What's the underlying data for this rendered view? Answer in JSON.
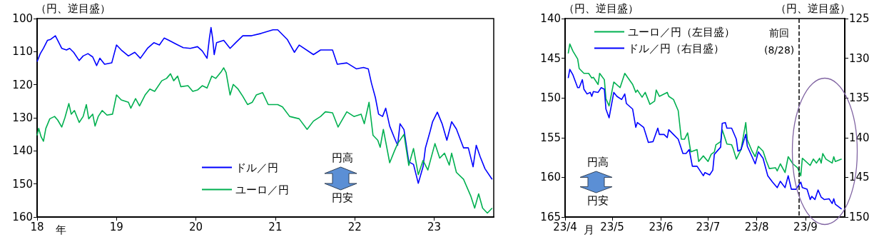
{
  "chart_data": [
    {
      "type": "line",
      "ylabel": "（円、逆目盛）",
      "xlabel": "年",
      "annotations": [
        "円高",
        "円安"
      ],
      "legend": "bottom",
      "marker": "none",
      "xlim": [
        2018,
        2023.75
      ],
      "xticks": [
        {
          "value": 2018,
          "label": "18"
        },
        {
          "value": 2019,
          "label": "19"
        },
        {
          "value": 2020,
          "label": "20"
        },
        {
          "value": 2021,
          "label": "21"
        },
        {
          "value": 2022,
          "label": "22"
        },
        {
          "value": 2023,
          "label": "23"
        }
      ],
      "ylim": [
        160,
        100
      ],
      "yticks": [
        100,
        110,
        120,
        130,
        140,
        150,
        160
      ],
      "series": [
        {
          "name": "ドル／円",
          "color": "#0000ff",
          "x": [
            2018.0,
            2018.04,
            2018.08,
            2018.13,
            2018.17,
            2018.23,
            2018.26,
            2018.31,
            2018.37,
            2018.41,
            2018.46,
            2018.53,
            2018.58,
            2018.64,
            2018.7,
            2018.75,
            2018.79,
            2018.85,
            2018.94,
            2019.0,
            2019.06,
            2019.15,
            2019.23,
            2019.3,
            2019.39,
            2019.47,
            2019.54,
            2019.6,
            2019.66,
            2019.75,
            2019.84,
            2019.93,
            2020.02,
            2020.08,
            2020.14,
            2020.17,
            2020.19,
            2020.21,
            2020.23,
            2020.26,
            2020.35,
            2020.43,
            2020.5,
            2020.59,
            2020.7,
            2020.82,
            2020.97,
            2021.03,
            2021.15,
            2021.24,
            2021.3,
            2021.48,
            2021.57,
            2021.72,
            2021.78,
            2021.9,
            2022.02,
            2022.11,
            2022.17,
            2022.21,
            2022.26,
            2022.3,
            2022.35,
            2022.39,
            2022.44,
            2022.5,
            2022.54,
            2022.57,
            2022.62,
            2022.68,
            2022.74,
            2022.8,
            2022.86,
            2022.89,
            2022.95,
            2022.98,
            2023.04,
            2023.1,
            2023.16,
            2023.22,
            2023.28,
            2023.37,
            2023.43,
            2023.49,
            2023.53,
            2023.58,
            2023.64,
            2023.73
          ],
          "values": [
            113,
            110.6,
            109,
            106.6,
            106.3,
            105.2,
            106.6,
            109,
            109.5,
            109,
            110.2,
            112.7,
            111.3,
            110.6,
            111.6,
            114.2,
            112,
            113.8,
            113.4,
            108,
            109.5,
            111.3,
            110.2,
            112,
            109,
            107.3,
            108,
            105.9,
            106.6,
            107.7,
            108.8,
            109,
            108.5,
            109.8,
            112,
            105.9,
            102.7,
            105.9,
            110.9,
            107.3,
            106.6,
            109,
            107.3,
            105.2,
            105.2,
            104.5,
            103.4,
            103.4,
            106.3,
            110.2,
            108,
            110.9,
            109.5,
            109.5,
            113.8,
            113.4,
            115.2,
            114.8,
            115.2,
            119.5,
            123.9,
            128.9,
            129.6,
            127.1,
            132.5,
            136.1,
            138.3,
            131.8,
            133.6,
            143.3,
            144.1,
            149.8,
            144.8,
            139.1,
            134,
            131.2,
            128.3,
            131.8,
            136.8,
            131.2,
            133.4,
            139.1,
            139.1,
            144.8,
            138.3,
            141.8,
            145.4,
            148.6
          ]
        },
        {
          "name": "ユーロ／円",
          "color": "#00b050",
          "x": [
            2018.0,
            2018.02,
            2018.05,
            2018.08,
            2018.11,
            2018.16,
            2018.22,
            2018.26,
            2018.31,
            2018.35,
            2018.4,
            2018.43,
            2018.47,
            2018.53,
            2018.58,
            2018.62,
            2018.65,
            2018.7,
            2018.73,
            2018.77,
            2018.82,
            2018.88,
            2018.95,
            2019.0,
            2019.06,
            2019.15,
            2019.18,
            2019.24,
            2019.29,
            2019.36,
            2019.42,
            2019.48,
            2019.57,
            2019.63,
            2019.68,
            2019.72,
            2019.77,
            2019.81,
            2019.9,
            2019.96,
            2020.02,
            2020.08,
            2020.14,
            2020.2,
            2020.25,
            2020.32,
            2020.35,
            2020.38,
            2020.43,
            2020.47,
            2020.53,
            2020.59,
            2020.65,
            2020.71,
            2020.76,
            2020.84,
            2020.91,
            2021.03,
            2021.09,
            2021.18,
            2021.3,
            2021.4,
            2021.48,
            2021.57,
            2021.63,
            2021.72,
            2021.79,
            2021.9,
            2021.99,
            2022.08,
            2022.12,
            2022.18,
            2022.23,
            2022.29,
            2022.32,
            2022.36,
            2022.44,
            2022.5,
            2022.54,
            2022.62,
            2022.68,
            2022.74,
            2022.8,
            2022.86,
            2022.92,
            2023.01,
            2023.07,
            2023.13,
            2023.19,
            2023.22,
            2023.28,
            2023.37,
            2023.46,
            2023.51,
            2023.56,
            2023.61,
            2023.67,
            2023.73
          ],
          "values": [
            135.3,
            133.2,
            135.7,
            137.1,
            133.2,
            130.3,
            129.6,
            130.7,
            132.8,
            130,
            125.7,
            128.9,
            127.8,
            131.4,
            129.6,
            126,
            130.3,
            128.9,
            132.5,
            129.6,
            127.8,
            129.2,
            128.9,
            123.1,
            124.6,
            125.3,
            127.1,
            124.2,
            126.4,
            123.1,
            121.3,
            122,
            118.8,
            118.1,
            116.7,
            118.8,
            117.4,
            120.6,
            120.3,
            122,
            121.6,
            120.3,
            121,
            117.4,
            118.1,
            116,
            114.9,
            116.3,
            123.1,
            119.9,
            121.3,
            123.5,
            126,
            125.3,
            123.1,
            122.4,
            126,
            126,
            126.7,
            129.6,
            130.3,
            133.5,
            131,
            129.6,
            128.2,
            128.5,
            132.8,
            128.2,
            129.6,
            128.9,
            131.8,
            125.3,
            135.3,
            136.8,
            138.9,
            133.5,
            143.6,
            140,
            137.8,
            135,
            144.4,
            139.3,
            147.2,
            142.9,
            145.8,
            137.8,
            142.2,
            140.7,
            144.3,
            140.7,
            146.5,
            148.6,
            153.6,
            157.3,
            153,
            157.3,
            158.8,
            157.3
          ]
        }
      ]
    },
    {
      "type": "line",
      "ylabel": "（円、逆目盛）",
      "y2label": "（円、逆目盛）",
      "xlabel": "月",
      "annotations": [
        "円高",
        "円安"
      ],
      "legend": "top left",
      "marker": "none",
      "xlim": [
        "--04-01",
        "--09-26"
      ],
      "xticks": [
        {
          "value": "--04-01",
          "label": "23/4"
        },
        {
          "value": "--05-01",
          "label": "23/5"
        },
        {
          "value": "--06-01",
          "label": "23/6"
        },
        {
          "value": "--07-01",
          "label": "23/7"
        },
        {
          "value": "--08-01",
          "label": "23/8"
        },
        {
          "value": "--09-01",
          "label": "23/9"
        }
      ],
      "ylim": [
        165,
        140
      ],
      "yticks": [
        140,
        145,
        150,
        155,
        160,
        165
      ],
      "y2lim": [
        150,
        125
      ],
      "y2ticks": [
        125,
        130,
        135,
        140,
        145,
        150
      ],
      "ref_lines": [
        {
          "axis": "x",
          "value": "--08-28",
          "label": "前回\n(8/28)",
          "color": "#000000",
          "line_style": "dashed"
        }
      ],
      "series": [
        {
          "name": "ユーロ／円（左目盛）",
          "color": "#00b050",
          "x": [
            "--04-03",
            "--04-04",
            "--04-06",
            "--04-09",
            "--04-10",
            "--04-13",
            "--04-16",
            "--04-18",
            "--04-19",
            "--04-22",
            "--04-23",
            "--04-26",
            "--04-27",
            "--04-29",
            "--05-02",
            "--05-06",
            "--05-09",
            "--05-14",
            "--05-16",
            "--05-17",
            "--05-20",
            "--05-22",
            "--05-25",
            "--05-28",
            "--05-29",
            "--05-31",
            "--06-05",
            "--06-06",
            "--06-09",
            "--06-12",
            "--06-14",
            "--06-16",
            "--06-18",
            "--06-20",
            "--06-24",
            "--06-25",
            "--06-28",
            "--07-01",
            "--07-03",
            "--07-05",
            "--07-06",
            "--07-09",
            "--07-10",
            "--07-13",
            "--07-16",
            "--07-17",
            "--07-19",
            "--07-22",
            "--07-25",
            "--07-26",
            "--07-29",
            "--07-31",
            "--08-02",
            "--08-05",
            "--08-07",
            "--08-09",
            "--08-13",
            "--08-14",
            "--08-16",
            "--08-19",
            "--08-21",
            "--08-24",
            "--08-27",
            "--08-29",
            "--08-30",
            "--09-04",
            "--09-06",
            "--09-08",
            "--09-10",
            "--09-11",
            "--09-12",
            "--09-14",
            "--09-18",
            "--09-19",
            "--09-20",
            "--09-24"
          ],
          "values": [
            144.4,
            143.2,
            144.1,
            145.1,
            146.3,
            146.9,
            146.9,
            147.5,
            147.4,
            148.3,
            146.9,
            147.7,
            150.1,
            151.0,
            148.0,
            148.7,
            146.9,
            148.3,
            149.3,
            149.0,
            149.9,
            149.3,
            150.8,
            150.4,
            149.0,
            149.8,
            149.3,
            149.8,
            150.2,
            151.6,
            155.2,
            155.2,
            154.4,
            156.8,
            156.5,
            158.0,
            157.3,
            158.0,
            157.1,
            156.8,
            155.9,
            155.5,
            154.0,
            155.8,
            155.9,
            156.4,
            157.7,
            156.5,
            153.1,
            155.3,
            156.7,
            157.4,
            156.1,
            156.7,
            157.9,
            158.9,
            158.8,
            159.2,
            158.3,
            159.4,
            157.4,
            158.3,
            158.8,
            159.8,
            157.6,
            158.5,
            157.7,
            158.2,
            157.6,
            158.2,
            157.0,
            157.7,
            158.2,
            157.4,
            158.0,
            157.7
          ]
        },
        {
          "name": "ドル／円（右目盛）",
          "color": "#0000ff",
          "axis": "y2",
          "x": [
            "--04-03",
            "--04-04",
            "--04-06",
            "--04-09",
            "--04-10",
            "--04-12",
            "--04-13",
            "--04-15",
            "--04-17",
            "--04-18",
            "--04-19",
            "--04-22",
            "--04-24",
            "--04-26",
            "--04-27",
            "--04-29",
            "--05-02",
            "--05-04",
            "--05-07",
            "--05-09",
            "--05-10",
            "--05-14",
            "--05-16",
            "--05-17",
            "--05-21",
            "--05-24",
            "--05-27",
            "--05-30",
            "--05-31",
            "--06-03",
            "--06-05",
            "--06-06",
            "--06-09",
            "--06-12",
            "--06-15",
            "--06-17",
            "--06-19",
            "--06-21",
            "--06-24",
            "--06-28",
            "--06-29",
            "--07-02",
            "--07-04",
            "--07-05",
            "--07-09",
            "--07-10",
            "--07-12",
            "--07-13",
            "--07-16",
            "--07-19",
            "--07-20",
            "--07-22",
            "--07-25",
            "--07-26",
            "--07-29",
            "--07-31",
            "--08-02",
            "--08-05",
            "--08-08",
            "--08-11",
            "--08-14",
            "--08-16",
            "--08-19",
            "--08-21",
            "--08-23",
            "--08-26",
            "--08-28",
            "--08-29",
            "--08-30",
            "--09-02",
            "--09-04",
            "--09-05",
            "--09-07",
            "--09-09",
            "--09-11",
            "--09-13",
            "--09-16",
            "--09-18",
            "--09-19",
            "--09-20",
            "--09-24"
          ],
          "values": [
            132.5,
            131.4,
            132.1,
            133.7,
            133.7,
            132.7,
            133.9,
            134.5,
            134.3,
            134.8,
            134.2,
            134.3,
            133.7,
            133.9,
            136.4,
            137.5,
            134.3,
            134.8,
            135.2,
            134.5,
            135.7,
            136.4,
            138.7,
            138.1,
            138.7,
            140.6,
            140.5,
            138.8,
            139.6,
            139.6,
            140.0,
            139.0,
            139.6,
            140.2,
            142.0,
            142.0,
            141.5,
            143.6,
            143.6,
            144.8,
            144.4,
            144.7,
            144.1,
            142.1,
            141.2,
            138.2,
            138.1,
            138.8,
            138.8,
            140.2,
            141.7,
            141.5,
            139.6,
            141.1,
            142.4,
            143.3,
            141.8,
            142.6,
            144.8,
            145.6,
            146.3,
            145.5,
            146.3,
            144.8,
            146.5,
            146.5,
            145.9,
            145.6,
            146.3,
            146.5,
            147.8,
            147.4,
            147.8,
            146.6,
            147.5,
            147.8,
            147.7,
            148.3,
            147.7,
            148.4,
            149.0
          ]
        }
      ]
    }
  ]
}
